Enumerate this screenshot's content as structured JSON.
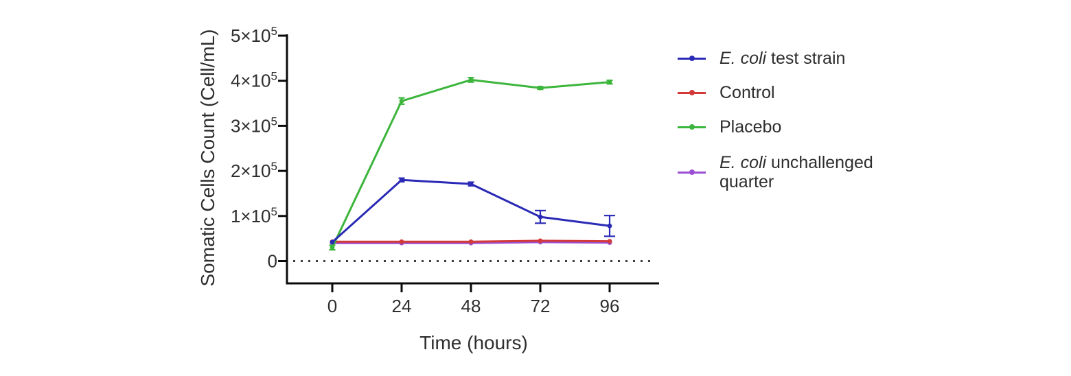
{
  "chart_data": {
    "type": "line",
    "title": "",
    "xlabel": "Time (hours)",
    "ylabel": "Somatic Cells Count (Cell/mL)",
    "x": [
      0,
      24,
      48,
      72,
      96
    ],
    "xtick_labels": [
      "0",
      "24",
      "48",
      "72",
      "96"
    ],
    "ylim": [
      0,
      500000
    ],
    "yticks": [
      0,
      100000,
      200000,
      300000,
      400000,
      500000
    ],
    "ytick_labels": [
      {
        "text": "0",
        "sup": ""
      },
      {
        "text": "1×10",
        "sup": "5"
      },
      {
        "text": "2×10",
        "sup": "5"
      },
      {
        "text": "3×10",
        "sup": "5"
      },
      {
        "text": "4×10",
        "sup": "5"
      },
      {
        "text": "5×10",
        "sup": "5"
      }
    ],
    "grid": false,
    "zero_baseline_style": "dotted",
    "legend_position": "right",
    "series": [
      {
        "name": "E. coli test strain",
        "color": "#2a2ab6",
        "values": [
          42000,
          180000,
          171000,
          98000,
          78000
        ],
        "errors": [
          0,
          4000,
          4000,
          14000,
          23000
        ]
      },
      {
        "name": "Control",
        "color": "#d23a3a",
        "values": [
          43000,
          43000,
          43000,
          45000,
          44000
        ],
        "errors": [
          0,
          0,
          0,
          0,
          0
        ]
      },
      {
        "name": "Placebo",
        "color": "#3cb53c",
        "values": [
          30000,
          355000,
          402000,
          384000,
          397000
        ],
        "errors": [
          5000,
          7000,
          5000,
          3000,
          4000
        ]
      },
      {
        "name": "E. coli unchallenged quarter",
        "color": "#9b4fd2",
        "values": [
          40000,
          40000,
          40000,
          42000,
          41000
        ],
        "errors": [
          0,
          0,
          0,
          0,
          0
        ]
      }
    ]
  },
  "legend": {
    "items": [
      {
        "italic": "E. coli",
        "rest": " test strain",
        "line2": "",
        "color": "#2a2ab6"
      },
      {
        "italic": "",
        "rest": "Control",
        "line2": "",
        "color": "#d23a3a"
      },
      {
        "italic": "",
        "rest": "Placebo",
        "line2": "",
        "color": "#3cb53c"
      },
      {
        "italic": "E. coli",
        "rest": " unchallenged",
        "line2": "quarter",
        "color": "#9b4fd2"
      }
    ]
  }
}
